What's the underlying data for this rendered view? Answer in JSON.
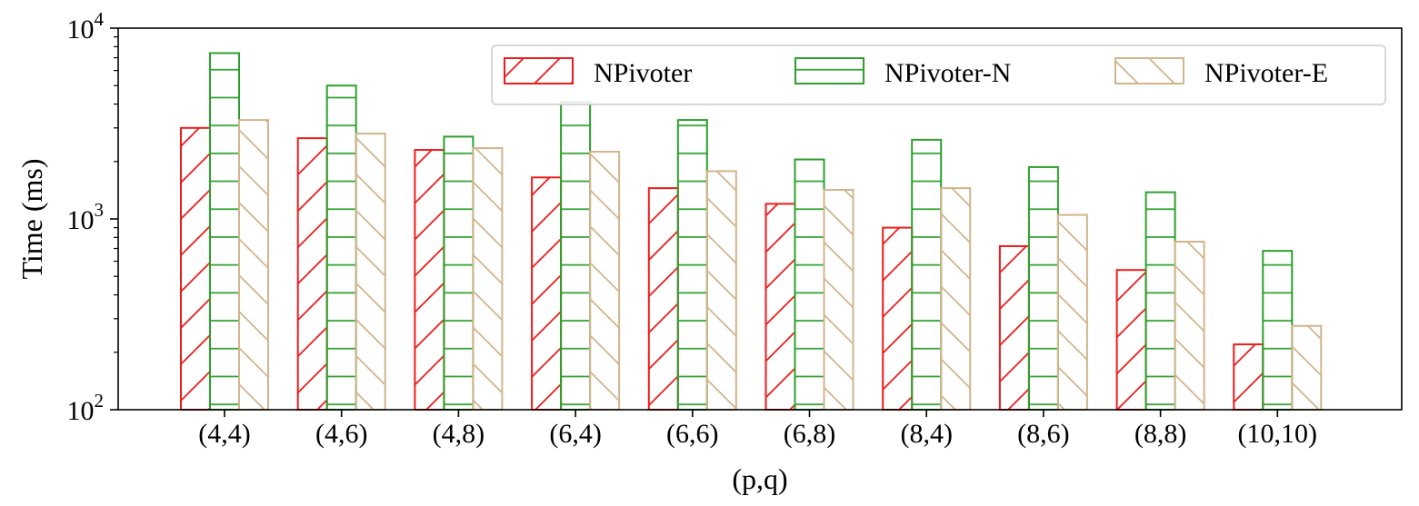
{
  "chart_data": {
    "type": "bar",
    "title": "",
    "xlabel": "(p,q)",
    "ylabel": "Time (ms)",
    "yscale": "log",
    "ylim": [
      100,
      10000
    ],
    "yticks": [
      {
        "value": 100,
        "base": "10",
        "exp": "2"
      },
      {
        "value": 1000,
        "base": "10",
        "exp": "3"
      },
      {
        "value": 10000,
        "base": "10",
        "exp": "4"
      }
    ],
    "categories": [
      "(4,4)",
      "(4,6)",
      "(4,8)",
      "(6,4)",
      "(6,6)",
      "(6,8)",
      "(8,4)",
      "(8,6)",
      "(8,8)",
      "(10,10)"
    ],
    "series": [
      {
        "name": "NPivoter",
        "color": "#ee1c1c",
        "hatch": "/",
        "values": [
          3000,
          2650,
          2300,
          1650,
          1450,
          1200,
          900,
          720,
          540,
          220
        ]
      },
      {
        "name": "NPivoter-N",
        "color": "#2ca02c",
        "hatch": "-",
        "values": [
          7400,
          5000,
          2700,
          4100,
          3300,
          2050,
          2600,
          1870,
          1380,
          680
        ]
      },
      {
        "name": "NPivoter-E",
        "color": "#d2b48c",
        "hatch": "\\",
        "values": [
          3300,
          2800,
          2350,
          2250,
          1780,
          1420,
          1450,
          1050,
          760,
          275
        ]
      }
    ],
    "legend": {
      "position": "top-right",
      "columns": 3
    }
  }
}
